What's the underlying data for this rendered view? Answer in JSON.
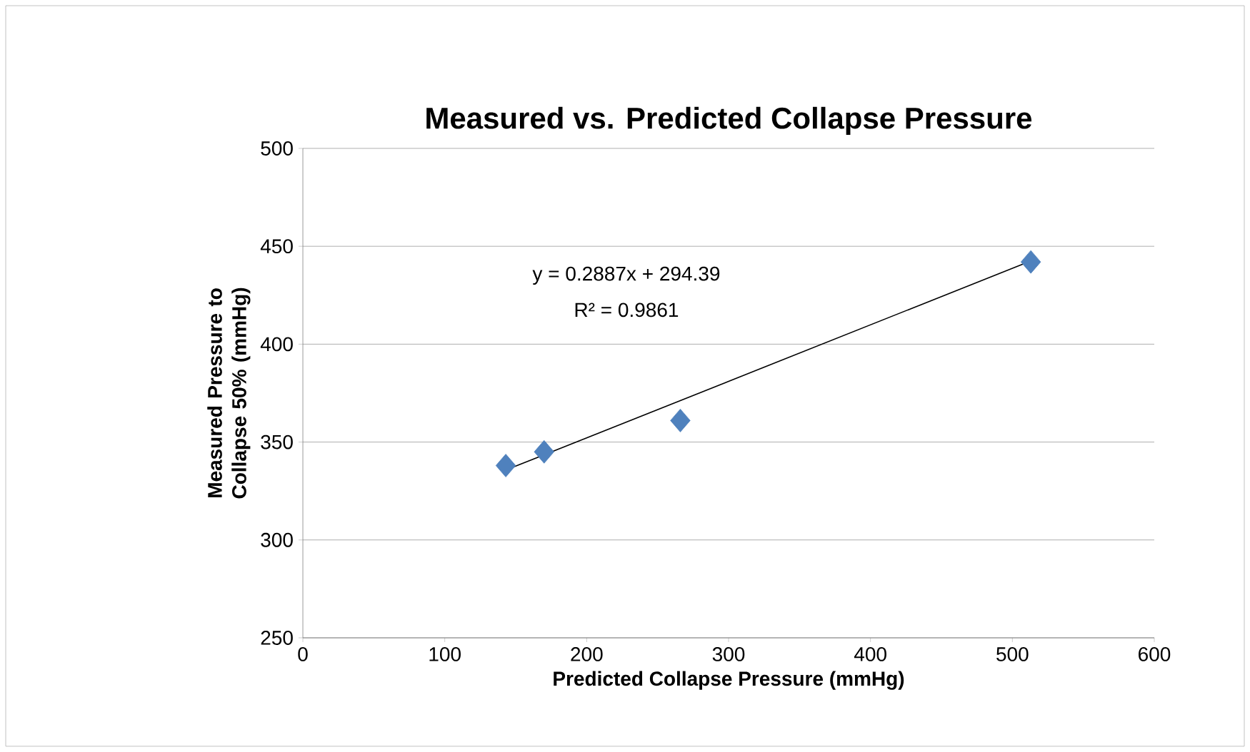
{
  "chart_data": {
    "type": "scatter",
    "title": "Measured vs. Predicted Collapse Pressure",
    "xlabel": "Predicted Collapse Pressure (mmHg)",
    "ylabel": "Measured Pressure to Collapse 50% (mmHg)",
    "series": [
      {
        "type": "scatter",
        "color": "#4f81bd",
        "marker": "diamond",
        "x": [
          143,
          170,
          266,
          513
        ],
        "values": [
          338,
          345,
          361,
          442
        ]
      },
      {
        "type": "line",
        "color": "#000000",
        "marker": "none",
        "x": [
          143,
          513
        ],
        "values": [
          335.7,
          442.5
        ]
      }
    ],
    "annotations": [
      "y = 0.2887x + 294.39",
      "R² = 0.9861"
    ],
    "xlim": [
      0,
      600
    ],
    "xticks": [
      0,
      100,
      200,
      300,
      400,
      500,
      600
    ],
    "ylim": [
      250,
      500
    ],
    "yticks": [
      250,
      300,
      350,
      400,
      450,
      500
    ],
    "grid": "y"
  }
}
